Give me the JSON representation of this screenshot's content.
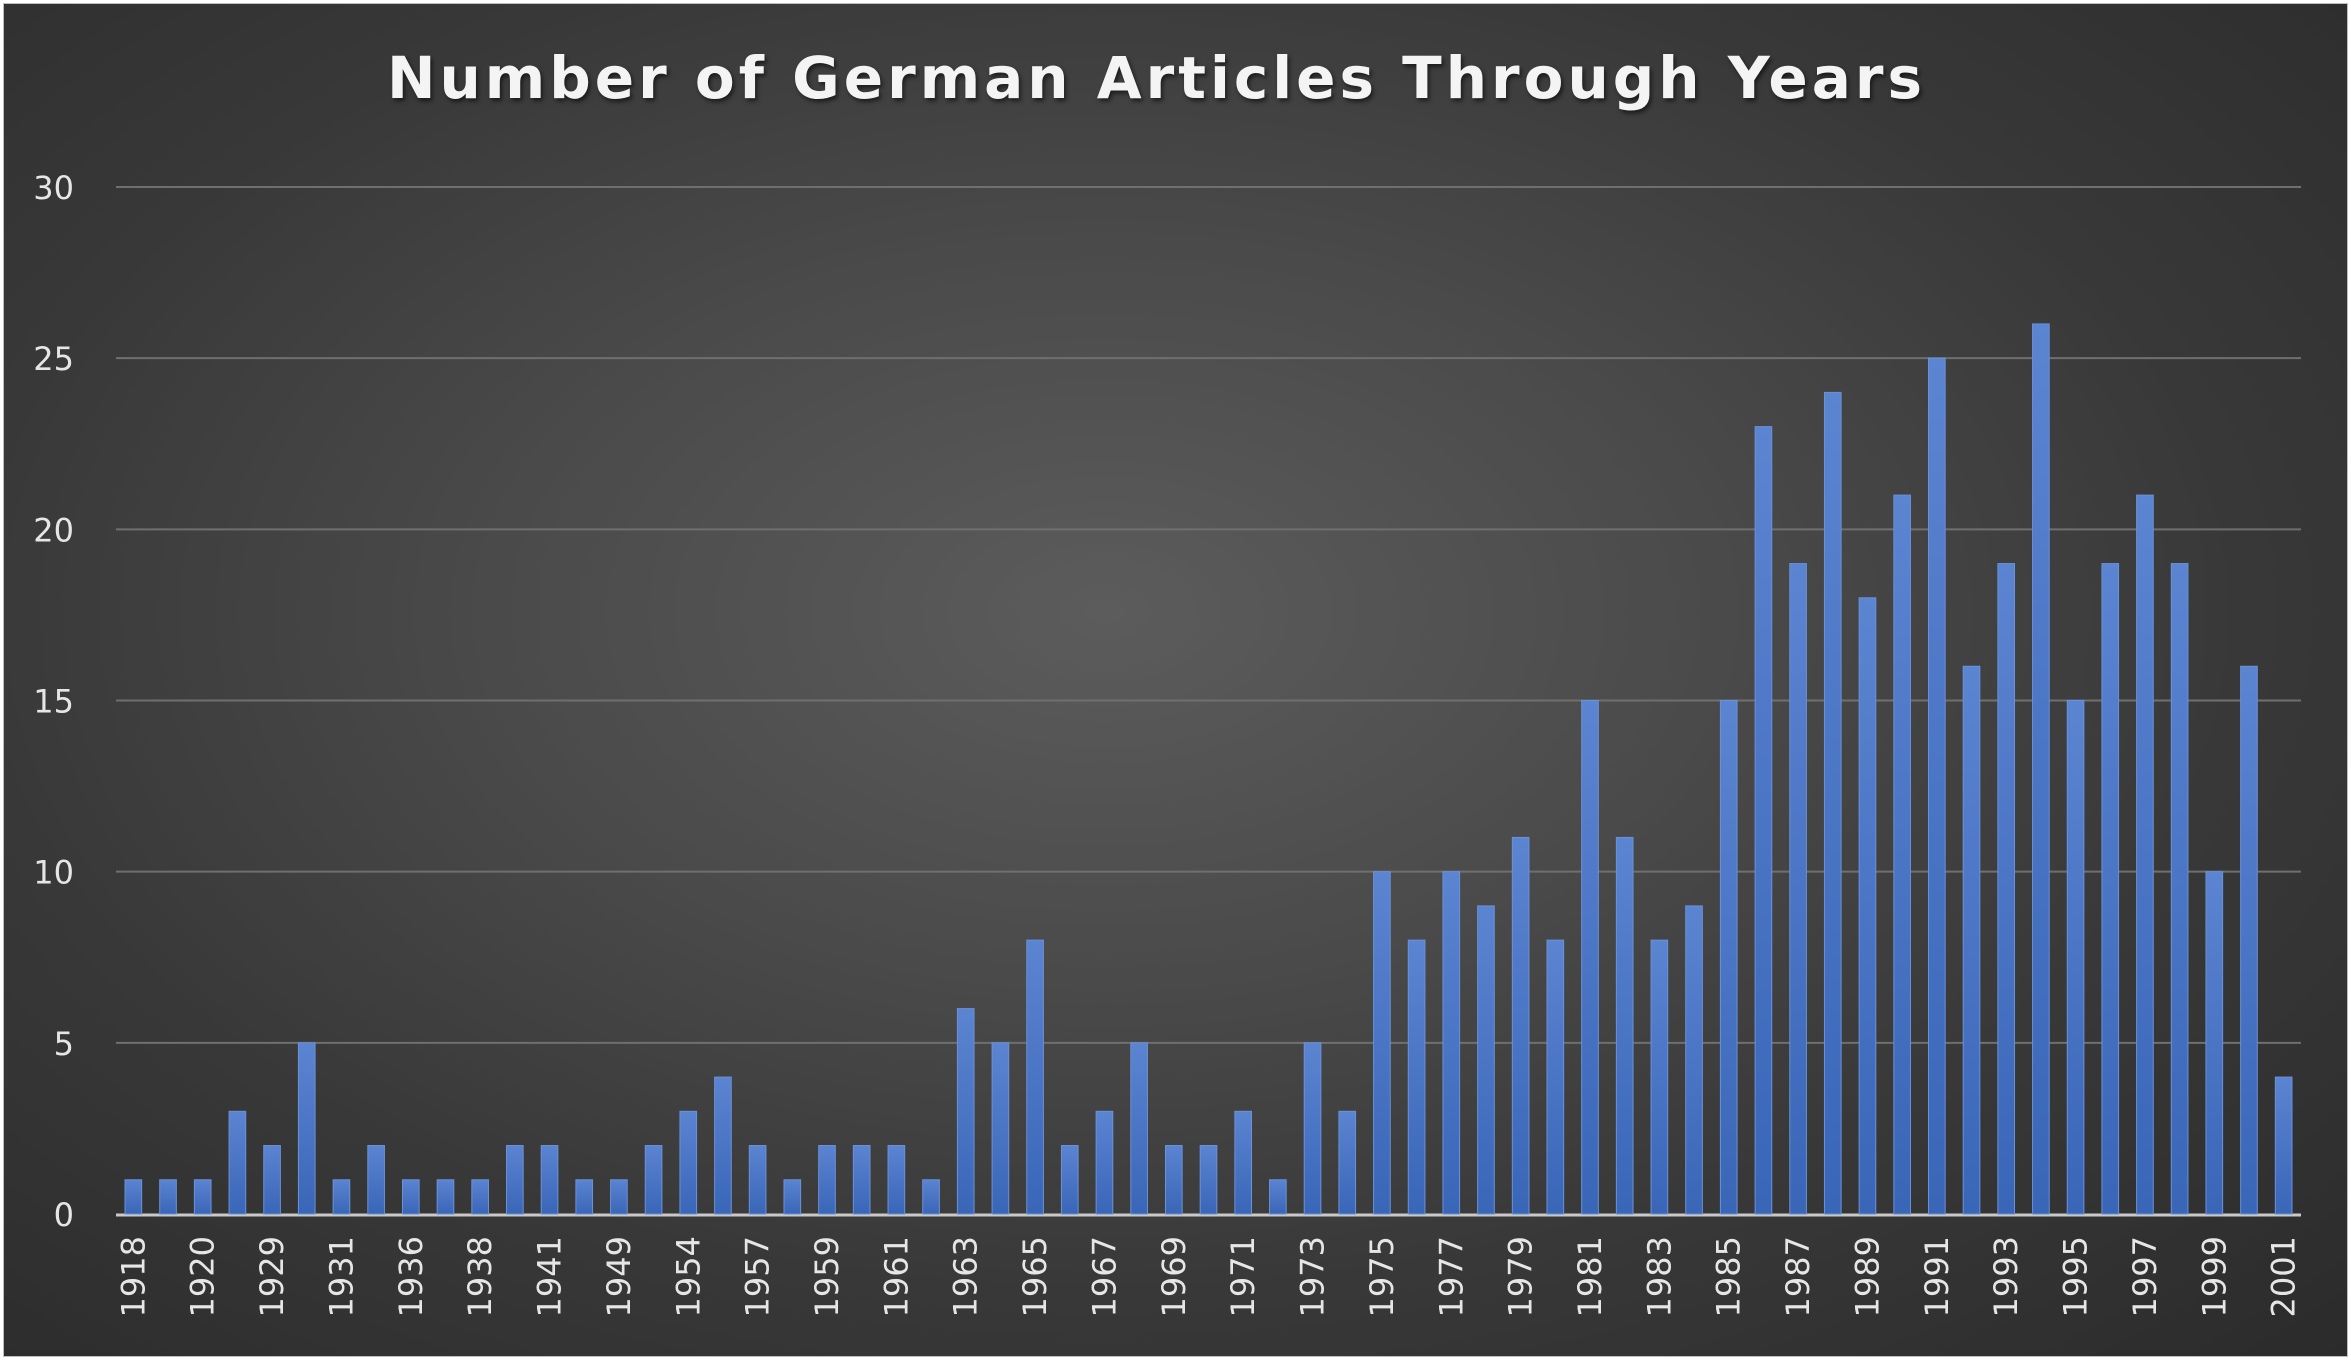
{
  "chart_data": {
    "type": "bar",
    "title": "Number of German Articles Through Years",
    "xlabel": "",
    "ylabel": "",
    "ylim": [
      0,
      30
    ],
    "yticks": [
      0,
      5,
      10,
      15,
      20,
      25,
      30
    ],
    "grid": true,
    "legend": "none",
    "bar_color": "#4472c4",
    "background": "dark-gradient",
    "categories": [
      "1918",
      "1919",
      "1920",
      "1928",
      "1929",
      "1930",
      "1931",
      "1935",
      "1936",
      "1937",
      "1938",
      "1940",
      "1941",
      "1942",
      "1949",
      "1953",
      "1954",
      "1956",
      "1957",
      "1958",
      "1959",
      "1960",
      "1961",
      "1962",
      "1963",
      "1964",
      "1965",
      "1966",
      "1967",
      "1968",
      "1969",
      "1970",
      "1971",
      "1972",
      "1973",
      "1974",
      "1975",
      "1976",
      "1977",
      "1978",
      "1979",
      "1980",
      "1981",
      "1982",
      "1983",
      "1984",
      "1985",
      "1986",
      "1987",
      "1988",
      "1989",
      "1990",
      "1991",
      "1992",
      "1993",
      "1994",
      "1995",
      "1996",
      "1997",
      "1998",
      "1999",
      "2000",
      "2001"
    ],
    "visible_tick_labels": [
      "1918",
      "1920",
      "1929",
      "1931",
      "1936",
      "1938",
      "1941",
      "1949",
      "1954",
      "1957",
      "1959",
      "1961",
      "1963",
      "1965",
      "1967",
      "1969",
      "1971",
      "1973",
      "1975",
      "1977",
      "1979",
      "1981",
      "1983",
      "1985",
      "1987",
      "1989",
      "1991",
      "1993",
      "1995",
      "1997",
      "1999",
      "2001"
    ],
    "values": [
      1,
      1,
      1,
      3,
      2,
      5,
      1,
      2,
      1,
      1,
      1,
      2,
      2,
      1,
      1,
      2,
      3,
      4,
      2,
      1,
      2,
      2,
      2,
      1,
      6,
      5,
      8,
      2,
      3,
      5,
      2,
      2,
      3,
      1,
      5,
      3,
      10,
      8,
      10,
      9,
      11,
      8,
      15,
      11,
      8,
      9,
      15,
      23,
      19,
      24,
      18,
      21,
      25,
      16,
      19,
      26,
      15,
      19,
      21,
      19,
      10,
      16,
      4
    ]
  }
}
